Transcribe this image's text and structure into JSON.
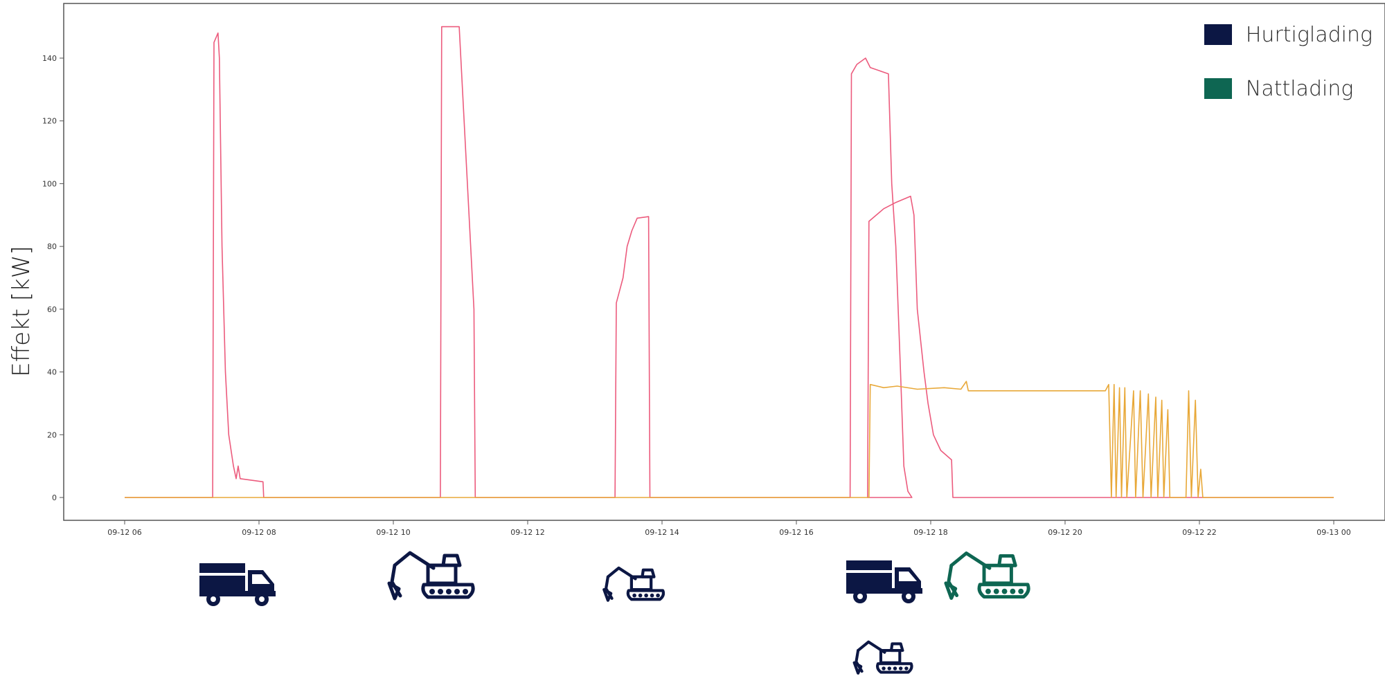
{
  "colors": {
    "hurtiglading": "#0c1744",
    "nattlading": "#0e6652",
    "red_series": "#ec5b7d",
    "orange_series": "#e8a838",
    "axes": "#555555"
  },
  "legend": {
    "items": [
      {
        "label": "Hurtiglading",
        "color": "#0c1744"
      },
      {
        "label": "Nattlading",
        "color": "#0e6652"
      }
    ]
  },
  "vehicles": [
    {
      "type": "truck-icon",
      "charging": "Hurtiglading"
    },
    {
      "type": "excavator-icon",
      "charging": "Hurtiglading"
    },
    {
      "type": "excavator-icon",
      "charging": "Hurtiglading"
    },
    {
      "type": "truck-icon",
      "charging": "Hurtiglading"
    },
    {
      "type": "excavator-icon",
      "charging": "Nattlading"
    },
    {
      "type": "excavator-icon",
      "charging": "Hurtiglading"
    }
  ],
  "chart_data": {
    "type": "line",
    "title": "",
    "xlabel": "",
    "ylabel": "Effekt [kW]",
    "xlim": [
      6,
      24
    ],
    "ylim": [
      -6,
      157
    ],
    "x_ticks": [
      6,
      8,
      10,
      12,
      14,
      16,
      18,
      20,
      22,
      24
    ],
    "x_tick_labels": [
      "09-12 06",
      "09-12 08",
      "09-12 10",
      "09-12 12",
      "09-12 14",
      "09-12 16",
      "09-12 18",
      "09-12 20",
      "09-12 22",
      "09-13 00"
    ],
    "y_ticks": [
      0,
      20,
      40,
      60,
      80,
      100,
      120,
      140
    ],
    "grid": false,
    "legend_position": "top-right",
    "series": [
      {
        "color": "#ec5b7d",
        "points": [
          [
            6.0,
            0
          ],
          [
            7.31,
            0
          ],
          [
            7.33,
            145
          ],
          [
            7.39,
            148
          ],
          [
            7.41,
            140
          ],
          [
            7.45,
            80
          ],
          [
            7.5,
            40
          ],
          [
            7.55,
            20
          ],
          [
            7.62,
            10
          ],
          [
            7.66,
            6
          ],
          [
            7.69,
            10
          ],
          [
            7.72,
            6
          ],
          [
            8.06,
            5
          ],
          [
            8.07,
            0
          ],
          [
            10.7,
            0
          ],
          [
            10.72,
            150
          ],
          [
            10.98,
            150
          ],
          [
            11.2,
            60
          ],
          [
            11.22,
            0
          ],
          [
            13.3,
            0
          ],
          [
            13.32,
            62
          ],
          [
            13.42,
            70
          ],
          [
            13.48,
            80
          ],
          [
            13.55,
            85
          ],
          [
            13.63,
            89
          ],
          [
            13.8,
            89.5
          ],
          [
            13.82,
            0
          ],
          [
            16.8,
            0
          ],
          [
            16.82,
            135
          ],
          [
            16.9,
            138
          ],
          [
            17.03,
            140
          ],
          [
            17.1,
            137
          ],
          [
            17.37,
            135
          ],
          [
            17.42,
            100
          ],
          [
            17.48,
            80
          ],
          [
            17.55,
            40
          ],
          [
            17.6,
            10
          ],
          [
            17.66,
            2
          ],
          [
            17.72,
            0
          ],
          [
            17.06,
            0
          ],
          [
            17.08,
            88
          ],
          [
            17.3,
            92
          ],
          [
            17.48,
            94
          ],
          [
            17.7,
            96
          ],
          [
            17.75,
            90
          ],
          [
            17.8,
            60
          ],
          [
            17.9,
            40
          ],
          [
            17.96,
            30
          ],
          [
            18.04,
            20
          ],
          [
            18.15,
            15
          ],
          [
            18.31,
            12
          ],
          [
            18.33,
            0
          ],
          [
            24.0,
            0
          ]
        ]
      },
      {
        "color": "#e8a838",
        "points": [
          [
            6.0,
            0
          ],
          [
            17.08,
            0
          ],
          [
            17.1,
            36
          ],
          [
            17.3,
            35
          ],
          [
            17.5,
            35.5
          ],
          [
            17.8,
            34.5
          ],
          [
            18.2,
            35
          ],
          [
            18.45,
            34.5
          ],
          [
            18.53,
            37
          ],
          [
            18.56,
            34
          ],
          [
            18.9,
            34
          ],
          [
            19.3,
            34
          ],
          [
            19.8,
            34
          ],
          [
            20.4,
            34
          ],
          [
            20.6,
            34
          ],
          [
            20.65,
            36
          ],
          [
            20.69,
            0
          ],
          [
            20.73,
            36
          ],
          [
            20.76,
            0
          ],
          [
            20.81,
            35
          ],
          [
            20.84,
            0
          ],
          [
            20.89,
            35
          ],
          [
            20.92,
            0
          ],
          [
            21.02,
            34
          ],
          [
            21.05,
            0
          ],
          [
            21.12,
            34
          ],
          [
            21.16,
            0
          ],
          [
            21.24,
            33
          ],
          [
            21.28,
            0
          ],
          [
            21.35,
            32
          ],
          [
            21.38,
            0
          ],
          [
            21.44,
            31
          ],
          [
            21.47,
            0
          ],
          [
            21.53,
            28
          ],
          [
            21.56,
            0
          ],
          [
            21.8,
            0
          ],
          [
            21.84,
            34
          ],
          [
            21.88,
            0
          ],
          [
            21.94,
            31
          ],
          [
            21.98,
            0
          ],
          [
            22.02,
            9
          ],
          [
            22.05,
            0
          ],
          [
            24.0,
            0
          ]
        ]
      }
    ]
  }
}
